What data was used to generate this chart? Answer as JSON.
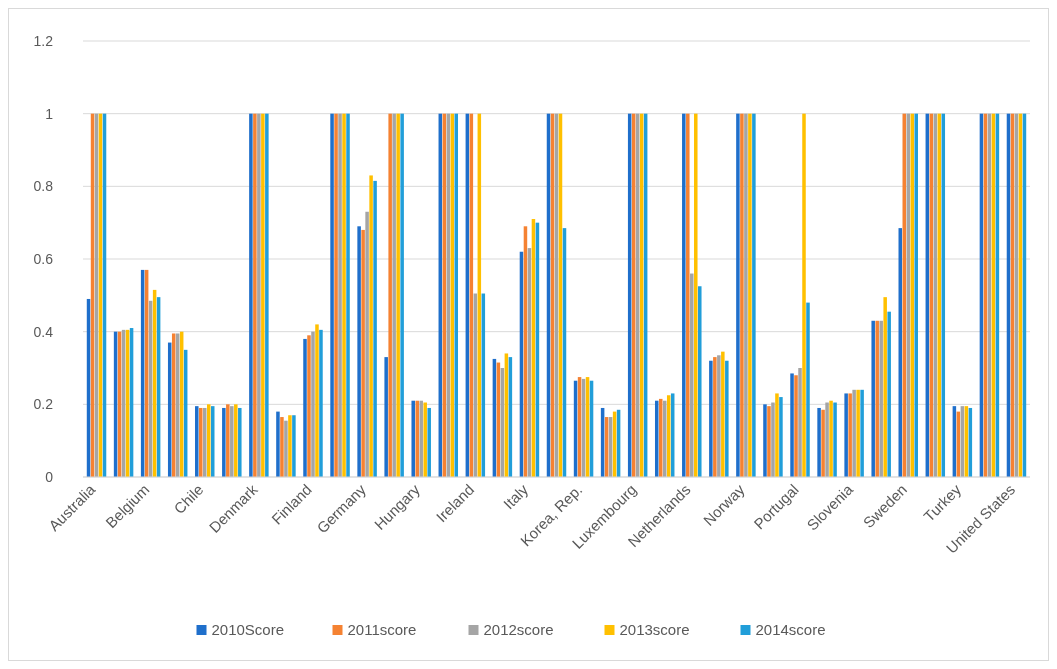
{
  "chart_data": {
    "type": "bar",
    "categories": [
      "Australia",
      null,
      "Belgium",
      null,
      "Chile",
      null,
      "Denmark",
      null,
      "Finland",
      null,
      "Germany",
      null,
      "Hungary",
      null,
      "Ireland",
      null,
      "Italy",
      null,
      "Korea, Rep.",
      null,
      "Luxembourg",
      null,
      "Netherlands",
      null,
      "Norway",
      null,
      "Portugal",
      null,
      "Slovenia",
      null,
      "Sweden",
      null,
      "Turkey",
      null,
      "United States"
    ],
    "series": [
      {
        "name": "2010Score",
        "color": "#1f6fcb",
        "values": [
          0.49,
          0.4,
          0.57,
          0.37,
          0.195,
          0.19,
          1,
          0.18,
          0.38,
          1,
          0.69,
          0.33,
          0.21,
          1,
          1,
          0.325,
          0.62,
          1,
          0.265,
          0.19,
          1,
          0.21,
          1,
          0.32,
          1,
          0.2,
          0.285,
          0.19,
          0.23,
          0.43,
          0.685,
          1,
          0.195,
          1,
          1
        ]
      },
      {
        "name": "2011score",
        "color": "#f58232",
        "values": [
          1,
          0.4,
          0.57,
          0.395,
          0.19,
          0.2,
          1,
          0.165,
          0.39,
          1,
          0.68,
          1,
          0.21,
          1,
          1,
          0.315,
          0.69,
          1,
          0.275,
          0.165,
          1,
          0.215,
          1,
          0.33,
          1,
          0.195,
          0.28,
          0.185,
          0.23,
          0.43,
          1,
          1,
          0.18,
          1,
          1
        ]
      },
      {
        "name": "2012score",
        "color": "#a5a5a5",
        "values": [
          1,
          0.405,
          0.485,
          0.395,
          0.19,
          0.195,
          1,
          0.155,
          0.4,
          1,
          0.73,
          1,
          0.21,
          1,
          0.505,
          0.3,
          0.63,
          1,
          0.27,
          0.165,
          1,
          0.21,
          0.56,
          0.335,
          1,
          0.205,
          0.3,
          0.205,
          0.24,
          0.43,
          1,
          1,
          0.195,
          1,
          1
        ]
      },
      {
        "name": "2013score",
        "color": "#ffc000",
        "values": [
          1,
          0.405,
          0.515,
          0.4,
          0.2,
          0.2,
          1,
          0.17,
          0.42,
          1,
          0.83,
          1,
          0.205,
          1,
          1,
          0.34,
          0.71,
          1,
          0.275,
          0.18,
          1,
          0.225,
          1,
          0.345,
          1,
          0.23,
          1,
          0.21,
          0.24,
          0.495,
          1,
          1,
          0.195,
          1,
          1
        ]
      },
      {
        "name": "2014score",
        "color": "#219ed9",
        "values": [
          1,
          0.41,
          0.495,
          0.35,
          0.195,
          0.19,
          1,
          0.17,
          0.405,
          1,
          0.815,
          1,
          0.19,
          1,
          0.505,
          0.33,
          0.7,
          0.685,
          0.265,
          0.185,
          1,
          0.23,
          0.525,
          0.32,
          1,
          0.22,
          0.48,
          0.205,
          0.24,
          0.455,
          1,
          1,
          0.19,
          1,
          1
        ]
      }
    ],
    "ylim": [
      0,
      1.2
    ],
    "yticks": [
      {
        "value": 0,
        "label": "0"
      },
      {
        "value": 0.2,
        "label": "0.2"
      },
      {
        "value": 0.4,
        "label": "0.4"
      },
      {
        "value": 0.6,
        "label": "0.6"
      },
      {
        "value": 0.8,
        "label": "0.8"
      },
      {
        "value": 1,
        "label": "1"
      },
      {
        "value": 1.2,
        "label": "1.2"
      }
    ],
    "grid": "y",
    "legend": "bottom"
  }
}
